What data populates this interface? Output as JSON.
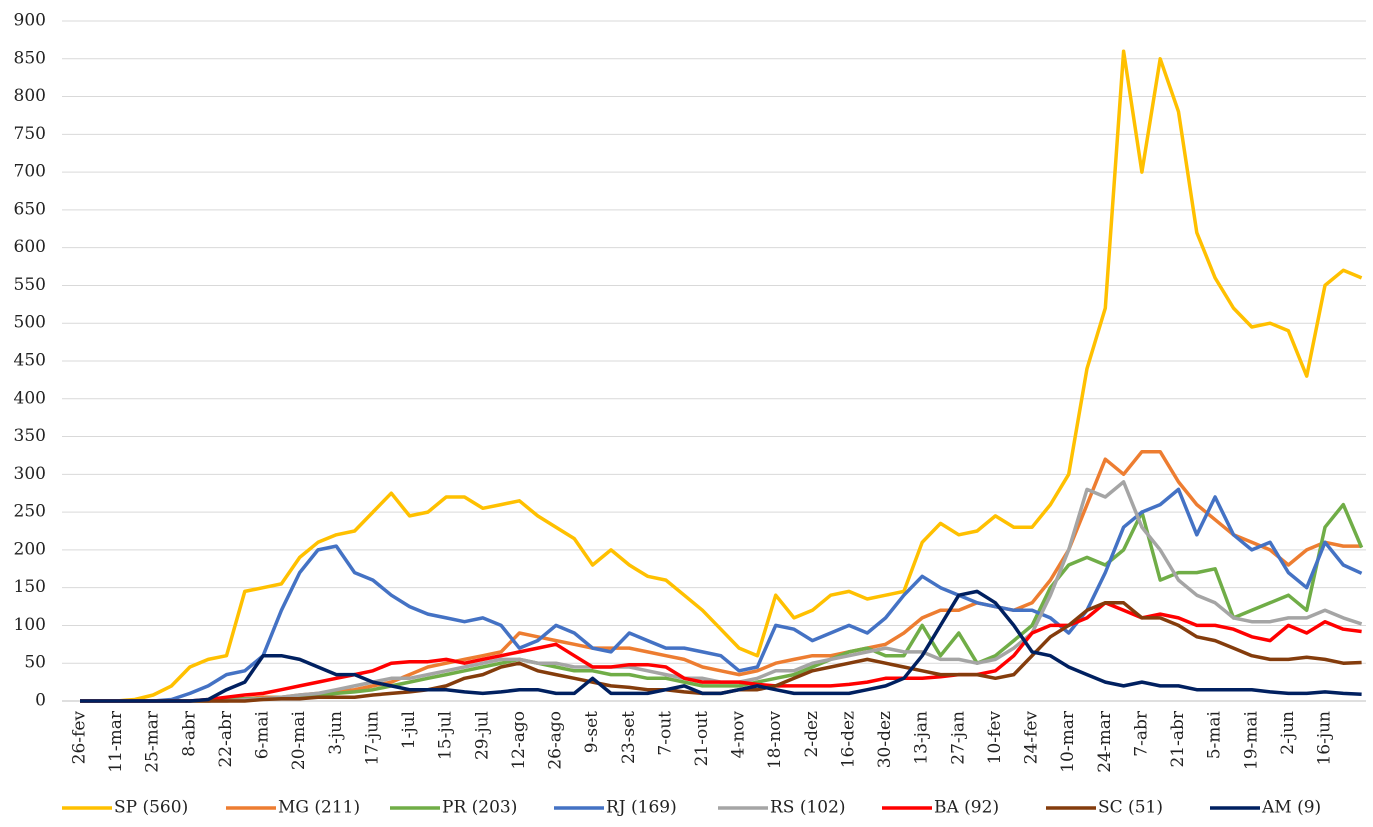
{
  "chart_data": {
    "type": "line",
    "categories": [
      "26-fev",
      null,
      "11-mar",
      null,
      "25-mar",
      null,
      "8-abr",
      null,
      "22-abr",
      null,
      "6-mai",
      null,
      "20-mai",
      null,
      "3-jun",
      null,
      "17-jun",
      null,
      "1-jul",
      null,
      "15-jul",
      null,
      "29-jul",
      null,
      "12-ago",
      null,
      "26-ago",
      null,
      "9-set",
      null,
      "23-set",
      null,
      "7-out",
      null,
      "21-out",
      null,
      "4-nov",
      null,
      "18-nov",
      null,
      "2-dez",
      null,
      "16-dez",
      null,
      "30-dez",
      null,
      "13-jan",
      null,
      "27-jan",
      null,
      "10-fev",
      null,
      "24-fev",
      null,
      "10-mar",
      null,
      "24-mar",
      null,
      "7-abr",
      null,
      "21-abr",
      null,
      "5-mai",
      null,
      "19-mai",
      null,
      "2-jun",
      null,
      "16-jun",
      null,
      null
    ],
    "series": [
      {
        "name": "SP (560)",
        "color": "#ffc000",
        "values": [
          0,
          0,
          0,
          2,
          8,
          20,
          45,
          55,
          60,
          145,
          150,
          155,
          190,
          210,
          220,
          225,
          250,
          275,
          245,
          250,
          270,
          270,
          255,
          260,
          265,
          245,
          230,
          215,
          180,
          200,
          180,
          165,
          160,
          140,
          120,
          95,
          70,
          60,
          140,
          110,
          120,
          140,
          145,
          135,
          140,
          145,
          210,
          235,
          220,
          225,
          245,
          230,
          230,
          260,
          300,
          440,
          520,
          860,
          700,
          850,
          780,
          620,
          560,
          520,
          495,
          500,
          490,
          430,
          550,
          570,
          560
        ]
      },
      {
        "name": "MG (211)",
        "color": "#ed7d31",
        "values": [
          0,
          0,
          0,
          0,
          0,
          0,
          0,
          0,
          2,
          3,
          5,
          5,
          8,
          10,
          12,
          15,
          20,
          25,
          35,
          45,
          50,
          55,
          60,
          65,
          90,
          85,
          80,
          75,
          70,
          70,
          70,
          65,
          60,
          55,
          45,
          40,
          35,
          40,
          50,
          55,
          60,
          60,
          65,
          70,
          75,
          90,
          110,
          120,
          120,
          130,
          125,
          120,
          130,
          160,
          200,
          260,
          320,
          300,
          330,
          330,
          290,
          260,
          240,
          220,
          210,
          200,
          180,
          200,
          210,
          205,
          205
        ]
      },
      {
        "name": "PR (203)",
        "color": "#70ad47",
        "values": [
          0,
          0,
          0,
          0,
          0,
          0,
          0,
          0,
          2,
          3,
          3,
          5,
          5,
          8,
          10,
          12,
          15,
          20,
          25,
          30,
          35,
          40,
          45,
          50,
          55,
          50,
          45,
          40,
          40,
          35,
          35,
          30,
          30,
          25,
          20,
          20,
          20,
          25,
          30,
          35,
          45,
          55,
          65,
          70,
          60,
          60,
          100,
          60,
          90,
          50,
          60,
          80,
          100,
          150,
          180,
          190,
          180,
          200,
          250,
          160,
          170,
          170,
          175,
          110,
          120,
          130,
          140,
          120,
          230,
          260,
          203
        ]
      },
      {
        "name": "RJ (169)",
        "color": "#4472c4",
        "values": [
          0,
          0,
          0,
          0,
          0,
          2,
          10,
          20,
          35,
          40,
          60,
          120,
          170,
          200,
          205,
          170,
          160,
          140,
          125,
          115,
          110,
          105,
          110,
          100,
          70,
          80,
          100,
          90,
          70,
          65,
          90,
          80,
          70,
          70,
          65,
          60,
          40,
          45,
          100,
          95,
          80,
          90,
          100,
          90,
          110,
          140,
          165,
          150,
          140,
          130,
          125,
          120,
          120,
          110,
          90,
          120,
          170,
          230,
          250,
          260,
          280,
          220,
          270,
          220,
          200,
          210,
          170,
          150,
          210,
          180,
          169
        ]
      },
      {
        "name": "RS (102)",
        "color": "#a5a5a5",
        "values": [
          0,
          0,
          0,
          0,
          0,
          0,
          0,
          0,
          0,
          2,
          3,
          5,
          8,
          10,
          15,
          20,
          25,
          30,
          30,
          35,
          40,
          45,
          50,
          55,
          55,
          50,
          50,
          45,
          45,
          45,
          45,
          40,
          35,
          30,
          30,
          25,
          25,
          30,
          40,
          40,
          50,
          55,
          60,
          65,
          70,
          65,
          65,
          55,
          55,
          50,
          55,
          70,
          90,
          140,
          200,
          280,
          270,
          290,
          230,
          200,
          160,
          140,
          130,
          110,
          105,
          105,
          110,
          110,
          120,
          110,
          102
        ]
      },
      {
        "name": "BA (92)",
        "color": "#ff0000",
        "values": [
          0,
          0,
          0,
          0,
          0,
          0,
          0,
          2,
          5,
          8,
          10,
          15,
          20,
          25,
          30,
          35,
          40,
          50,
          52,
          52,
          55,
          50,
          55,
          60,
          65,
          70,
          75,
          60,
          45,
          45,
          48,
          48,
          45,
          30,
          25,
          25,
          25,
          22,
          20,
          20,
          20,
          20,
          22,
          25,
          30,
          30,
          30,
          32,
          35,
          35,
          40,
          60,
          90,
          100,
          100,
          110,
          130,
          120,
          110,
          115,
          110,
          100,
          100,
          95,
          85,
          80,
          100,
          90,
          105,
          95,
          92
        ]
      },
      {
        "name": "SC (51)",
        "color": "#843c0c",
        "values": [
          0,
          0,
          0,
          0,
          0,
          0,
          0,
          0,
          0,
          0,
          2,
          3,
          3,
          5,
          5,
          5,
          8,
          10,
          12,
          15,
          20,
          30,
          35,
          45,
          50,
          40,
          35,
          30,
          25,
          20,
          18,
          15,
          15,
          12,
          10,
          10,
          15,
          15,
          20,
          30,
          40,
          45,
          50,
          55,
          50,
          45,
          40,
          35,
          35,
          35,
          30,
          35,
          60,
          85,
          100,
          120,
          130,
          130,
          110,
          110,
          100,
          85,
          80,
          70,
          60,
          55,
          55,
          58,
          55,
          50,
          51
        ]
      },
      {
        "name": "AM (9)",
        "color": "#002060",
        "values": [
          0,
          0,
          0,
          0,
          0,
          0,
          0,
          2,
          15,
          25,
          60,
          60,
          55,
          45,
          35,
          35,
          25,
          20,
          15,
          15,
          15,
          12,
          10,
          12,
          15,
          15,
          10,
          10,
          30,
          10,
          10,
          10,
          15,
          20,
          10,
          10,
          15,
          20,
          15,
          10,
          10,
          10,
          10,
          15,
          20,
          30,
          60,
          100,
          140,
          145,
          130,
          100,
          65,
          60,
          45,
          35,
          25,
          20,
          25,
          20,
          20,
          15,
          15,
          15,
          15,
          12,
          10,
          10,
          12,
          10,
          9
        ]
      }
    ],
    "ylim": [
      0,
      900
    ],
    "yticks": [
      0,
      50,
      100,
      150,
      200,
      250,
      300,
      350,
      400,
      450,
      500,
      550,
      600,
      650,
      700,
      750,
      800,
      850,
      900
    ],
    "grid": true
  }
}
